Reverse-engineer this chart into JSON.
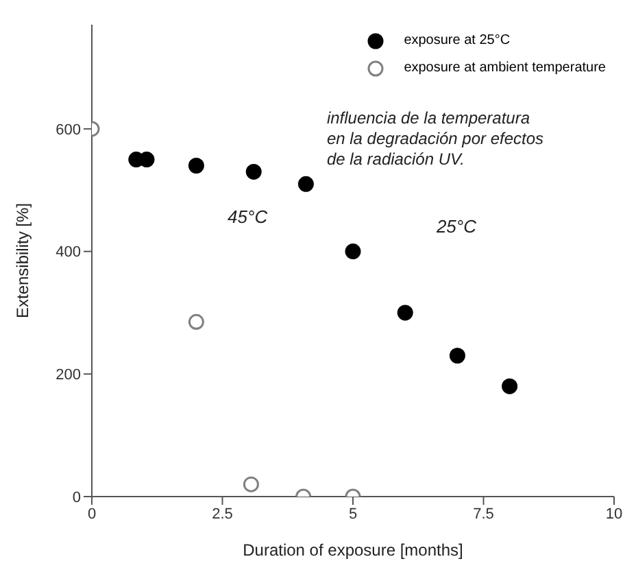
{
  "chart_data": {
    "type": "scatter",
    "xlabel": "Duration of exposure [months]",
    "ylabel": "Extensibility [%]",
    "xlim": [
      0,
      10
    ],
    "xticks": [
      0,
      2.5,
      5,
      7.5,
      10
    ],
    "ylim": [
      0,
      770
    ],
    "yticks": [
      0,
      200,
      400,
      600
    ],
    "series": [
      {
        "name": "exposure at 25°C",
        "color": "#000000",
        "x": [
          0.85,
          1.05,
          2.0,
          3.1,
          4.1,
          5.0,
          6.0,
          7.0,
          8.0
        ],
        "values": [
          550,
          550,
          540,
          530,
          510,
          400,
          300,
          230,
          180
        ]
      },
      {
        "name": "exposure at ambient temperature",
        "color": "#808080",
        "x": [
          0,
          2.0,
          3.05,
          4.05,
          5.0
        ],
        "values": [
          600,
          285,
          20,
          0,
          0
        ]
      }
    ],
    "marker": "circle",
    "legend": "top right",
    "annotations": [
      "influencia de la temperatura en la degradación por efectos de la radiación UV.",
      "45°C",
      "25°C"
    ]
  }
}
